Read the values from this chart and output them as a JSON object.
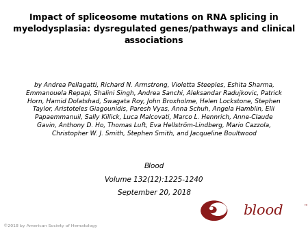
{
  "title": "Impact of spliceosome mutations on RNA splicing in\nmyelodysplasia: dysregulated genes/pathways and clinical\nassociations",
  "authors": "by Andrea Pellagatti, Richard N. Armstrong, Violetta Steeples, Eshita Sharma,\nEmmanouela Repapi, Shalini Singh, Andrea Sanchi, Aleksandar Radujkovic, Patrick\nHorn, Hamid Dolatshad, Swagata Roy, John Broxholme, Helen Lockstone, Stephen\nTaylor, Aristoteles Giagounidis, Paresh Vyas, Anna Schuh, Angela Hamblin, Elli\nPapaemmanuil, Sally Killick, Luca Malcovati, Marco L. Hennrich, Anne-Claude\nGavin, Anthony D. Ho, Thomas Luft, Eva Hellström-Lindberg, Mario Cazzola,\nChristopher W. J. Smith, Stephen Smith, and Jacqueline Boultwood",
  "journal_line1": "Blood",
  "journal_line2": "Volume 132(12):1225-1240",
  "journal_line3": "September 20, 2018",
  "copyright": "©2018 by American Society of Hematology",
  "bg_color": "#ffffff",
  "title_color": "#000000",
  "author_color": "#000000",
  "journal_color": "#000000",
  "copyright_color": "#888888",
  "blood_red": "#8b1a1a",
  "title_fontsize": 9.0,
  "author_fontsize": 6.5,
  "journal_fontsize": 7.5,
  "copyright_fontsize": 4.5,
  "blood_text_fontsize": 15.0
}
